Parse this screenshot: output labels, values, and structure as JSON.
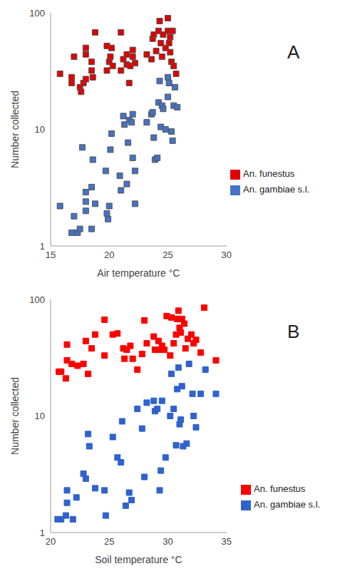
{
  "chart_data": [
    {
      "type": "scatter",
      "annotation": "A",
      "x_label": "Air temperature °C",
      "y_label": "Number collected",
      "log": "y",
      "xlim": [
        15,
        30
      ],
      "xticks": [
        15,
        20,
        25,
        30
      ],
      "ylim": [
        1,
        100
      ],
      "yticks": [
        1,
        10,
        100
      ],
      "grid": false,
      "legend": "right",
      "series": [
        {
          "name": "An. funestus",
          "color": "#e00000",
          "marker": "square",
          "x": [
            15.8,
            16.8,
            16.8,
            17,
            17.5,
            17.6,
            17.8,
            18,
            18,
            18,
            18.5,
            18.5,
            18.6,
            18.8,
            19.8,
            19.8,
            20,
            20.1,
            20.2,
            20.3,
            21,
            21,
            21.2,
            21.5,
            21.5,
            21.7,
            21.8,
            22,
            22,
            22.2,
            23.2,
            23.6,
            23.7,
            23.8,
            24,
            24.2,
            24.3,
            24.4,
            24.5,
            24.6,
            24.8,
            25,
            25,
            25.1,
            25.2,
            25.3,
            25.4,
            25.5,
            25.7,
            25.2
          ],
          "values": [
            30,
            25,
            28,
            42,
            23,
            21,
            25,
            27,
            44,
            50,
            32,
            38,
            28,
            68,
            52,
            32,
            38,
            42,
            50,
            35,
            32,
            68,
            40,
            44,
            36,
            25,
            35,
            48,
            42,
            37,
            44,
            40,
            60,
            65,
            47,
            70,
            85,
            55,
            42,
            65,
            50,
            90,
            70,
            55,
            46,
            38,
            70,
            35,
            30,
            62
          ]
        },
        {
          "name": "An. gambiae s.l.",
          "color": "#4472c4",
          "marker": "square",
          "x": [
            15.8,
            16.8,
            17,
            17.3,
            17.5,
            17.7,
            18,
            18,
            18,
            18.5,
            18.6,
            18.5,
            18.8,
            19.7,
            19.8,
            19.9,
            20,
            20.1,
            20.2,
            20.9,
            21,
            21.2,
            21.3,
            21.5,
            21.6,
            21.7,
            21.9,
            22,
            22,
            22.2,
            22.2,
            23.2,
            23.6,
            23.7,
            23.8,
            23.9,
            24.1,
            24.2,
            24.3,
            24.4,
            24.5,
            24.6,
            24.8,
            25,
            25,
            25.1,
            25.3,
            25.4,
            25.5,
            25.8,
            25.6
          ],
          "values": [
            2.2,
            1.3,
            1.8,
            1.3,
            1.4,
            7,
            2.9,
            2.4,
            2,
            3.2,
            5.5,
            1.4,
            2.3,
            4.4,
            1.9,
            1.7,
            2.2,
            6.7,
            9.2,
            4,
            3,
            13,
            11,
            3.4,
            7.7,
            12,
            11.5,
            5.7,
            13.5,
            2.3,
            4.4,
            11.5,
            13.5,
            14,
            8.5,
            5.5,
            5.7,
            17,
            26,
            10.5,
            16,
            15,
            10,
            28,
            19,
            25,
            9.6,
            8,
            16,
            15.5,
            23
          ]
        }
      ]
    },
    {
      "type": "scatter",
      "annotation": "B",
      "x_label": "Soil temperature °C",
      "y_label": "Number collected",
      "log": "y",
      "xlim": [
        20,
        35
      ],
      "xticks": [
        20,
        25,
        30,
        35
      ],
      "ylim": [
        1,
        100
      ],
      "yticks": [
        1,
        10,
        100
      ],
      "grid": false,
      "legend": "right",
      "series": [
        {
          "name": "An. funestus",
          "color": "#ff0000",
          "marker": "square",
          "x": [
            20.7,
            20.9,
            21.3,
            21.4,
            21.4,
            21.8,
            22.3,
            22.8,
            23,
            23.2,
            23.5,
            23.8,
            24.6,
            24.6,
            25.3,
            25.7,
            26.2,
            26.3,
            26.5,
            26.8,
            27,
            27.4,
            27.8,
            28,
            28.2,
            28.8,
            28.9,
            29.2,
            29.3,
            29.5,
            29.7,
            30.2,
            30.3,
            30.5,
            30.7,
            30.8,
            30.9,
            31,
            31.1,
            31.2,
            31.4,
            31.5,
            31.7,
            32,
            32.2,
            32.4,
            32.8,
            33.1,
            34.1,
            29.9
          ],
          "values": [
            24,
            24,
            21,
            41,
            30,
            28,
            27,
            28,
            44,
            23,
            38,
            50,
            67,
            33,
            50,
            51,
            38,
            31,
            37,
            40,
            31,
            25,
            34,
            66,
            42,
            48,
            37,
            44,
            37,
            40,
            37,
            33,
            70,
            42,
            50,
            68,
            80,
            57,
            52,
            68,
            62,
            38,
            46,
            50,
            42,
            45,
            35,
            85,
            30,
            72
          ]
        },
        {
          "name": "An. gambiae s.l.",
          "color": "#2f62cc",
          "marker": "square",
          "x": [
            20.6,
            20.9,
            21.3,
            21.4,
            21.4,
            21.9,
            22.2,
            22.8,
            23,
            23.2,
            23.3,
            23.8,
            24.6,
            24.7,
            25.3,
            25.7,
            26,
            26.1,
            26.4,
            26.7,
            26.9,
            27.4,
            27.8,
            28,
            28.2,
            28.8,
            28.9,
            29.1,
            29.3,
            29.4,
            29.5,
            29.8,
            30.2,
            30.3,
            30.5,
            30.7,
            30.8,
            30.9,
            31,
            31.1,
            31.2,
            31.3,
            31.6,
            31.8,
            32.1,
            32.2,
            32.4,
            32.8,
            33.2,
            34.1
          ],
          "values": [
            1.3,
            1.3,
            1.4,
            2.3,
            1.8,
            1.3,
            2,
            3.2,
            2.9,
            7,
            5.5,
            2.4,
            2.3,
            1.4,
            6.6,
            4.4,
            4,
            9,
            1.7,
            2.2,
            1.9,
            11.5,
            7.8,
            3,
            13,
            13.5,
            11,
            11.5,
            2.3,
            3.4,
            13.5,
            4.4,
            10,
            23,
            11.5,
            5.6,
            17,
            26,
            8.5,
            9.3,
            18,
            5.5,
            5.8,
            28,
            15.5,
            10,
            8,
            15.5,
            25,
            15.5
          ]
        }
      ]
    }
  ]
}
